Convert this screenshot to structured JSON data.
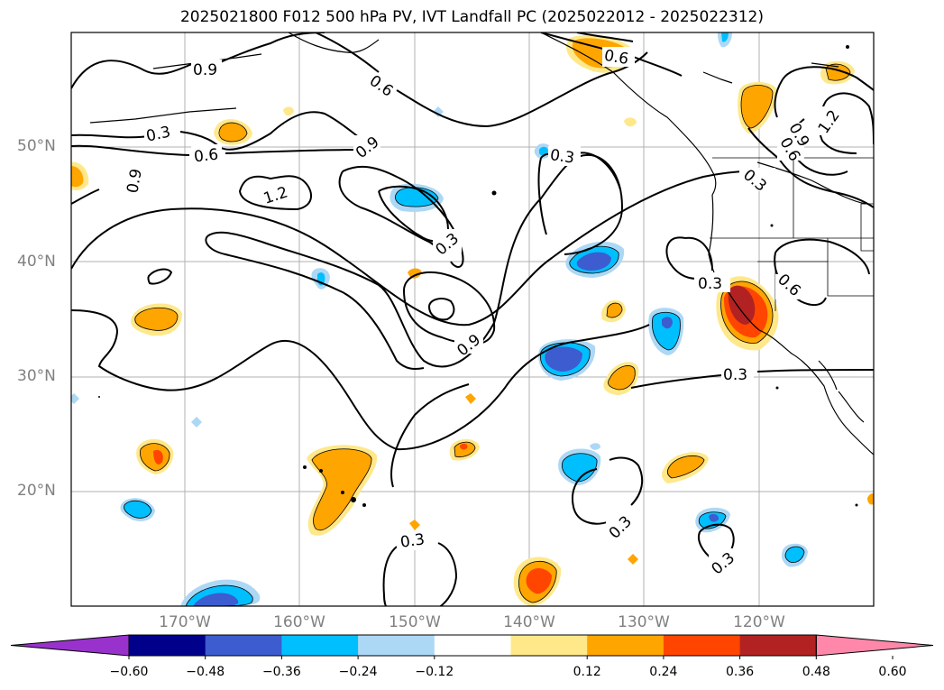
{
  "title": "2025021800 F012 500 hPa PV, IVT Landfall PC (2025022012 - 2025022312)",
  "lat_labels": [
    "50°N",
    "40°N",
    "30°N",
    "20°N"
  ],
  "lon_labels": [
    "170°W",
    "160°W",
    "150°W",
    "140°W",
    "130°W",
    "120°W"
  ],
  "contour_labels": [
    "0.9",
    "0.6",
    "0.3",
    "0.6",
    "0.9",
    "1.2",
    "0.9",
    "0.3",
    "0.9",
    "0.3",
    "0.6",
    "0.9",
    "0.6",
    "1.2",
    "0.3",
    "0.3",
    "0.6",
    "0.3",
    "0.3",
    "0.3",
    "0.3"
  ],
  "colorbar": {
    "ticks": [
      "−0.60",
      "−0.48",
      "−0.36",
      "−0.24",
      "−0.12",
      "0.12",
      "0.24",
      "0.36",
      "0.48",
      "0.60"
    ],
    "colors": [
      "#9932cc",
      "#00008b",
      "#3d5ccf",
      "#00bfff",
      "#add8f5",
      "#ffffff",
      "#ffe88a",
      "#ffa500",
      "#ff4500",
      "#b22222",
      "#ff88aa"
    ]
  },
  "fill_colors": {
    "neg_light": "#add8f5",
    "neg_mid": "#00bfff",
    "neg_dark": "#3d5ccf",
    "pos_light": "#ffe88a",
    "pos_mid": "#ffa500",
    "pos_dark": "#ff4500",
    "pos_max": "#b22222"
  }
}
